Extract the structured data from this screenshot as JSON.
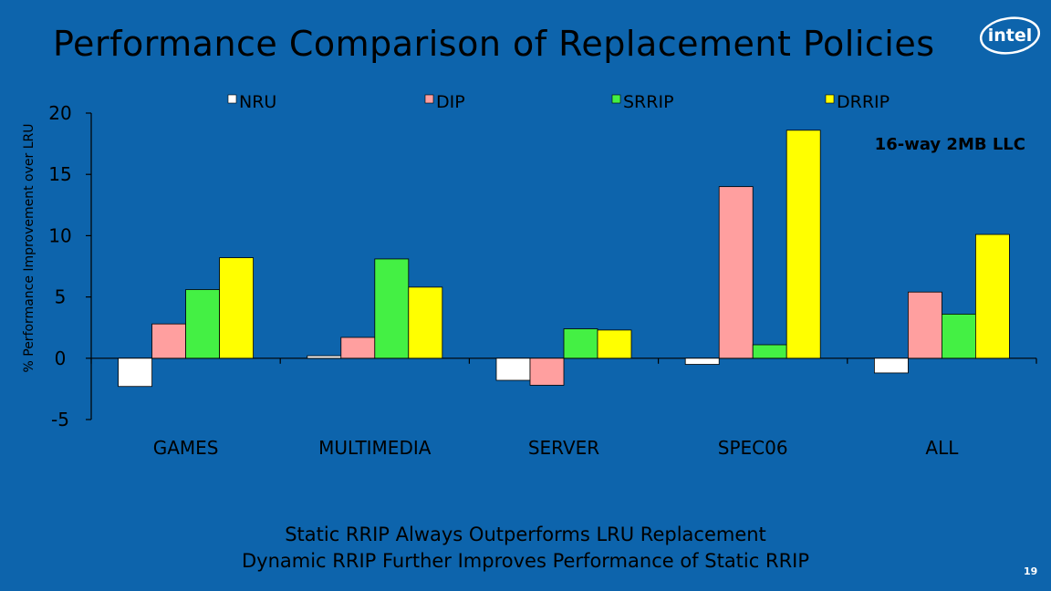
{
  "slide": {
    "title": "Performance Comparison of Replacement Policies",
    "logo_text": "intel",
    "footer_line1": "Static RRIP Always Outperforms LRU Replacement",
    "footer_line2": "Dynamic RRIP Further Improves Performance of Static RRIP",
    "page_number": "19"
  },
  "colors": {
    "background": "#0d64ac",
    "series": [
      "#ffffff",
      "#ff9f9f",
      "#44f044",
      "#ffff00"
    ]
  },
  "chart_data": {
    "type": "bar",
    "title": "",
    "xlabel": "",
    "ylabel": "% Performance Improvement over LRU",
    "annotation": "16-way 2MB LLC",
    "ylim": [
      -5,
      20
    ],
    "yticks": [
      -5,
      0,
      5,
      10,
      15,
      20
    ],
    "legend_position": "top",
    "categories": [
      "GAMES",
      "MULTIMEDIA",
      "SERVER",
      "SPEC06",
      "ALL"
    ],
    "series": [
      {
        "name": "NRU",
        "values": [
          -2.3,
          0.2,
          -1.8,
          -0.5,
          -1.2
        ]
      },
      {
        "name": "DIP",
        "values": [
          2.8,
          1.7,
          -2.2,
          14.0,
          5.4
        ]
      },
      {
        "name": "SRRIP",
        "values": [
          5.6,
          8.1,
          2.4,
          1.1,
          3.6
        ]
      },
      {
        "name": "DRRIP",
        "values": [
          8.2,
          5.8,
          2.3,
          18.6,
          10.1
        ]
      }
    ]
  }
}
